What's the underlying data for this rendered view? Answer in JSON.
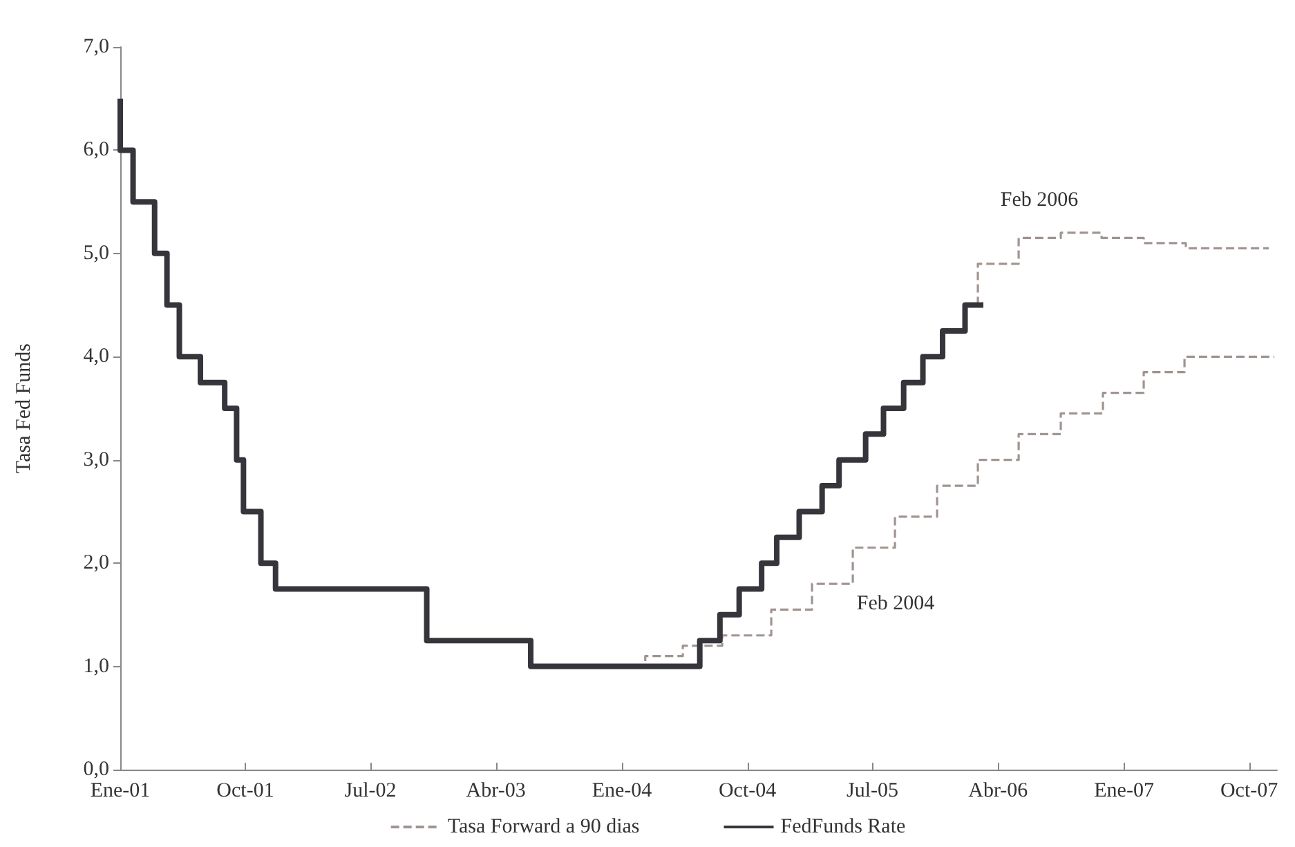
{
  "chart_data": {
    "type": "step",
    "ylabel": "Tasa Fed Funds",
    "xlim": [
      "2001-01-01",
      "2007-12-01"
    ],
    "xticks": [
      {
        "value": "2001-01-01",
        "label": "Ene-01"
      },
      {
        "value": "2001-10-01",
        "label": "Oct-01"
      },
      {
        "value": "2002-07-01",
        "label": "Jul-02"
      },
      {
        "value": "2003-04-01",
        "label": "Abr-03"
      },
      {
        "value": "2004-01-01",
        "label": "Ene-04"
      },
      {
        "value": "2004-10-01",
        "label": "Oct-04"
      },
      {
        "value": "2005-07-01",
        "label": "Jul-05"
      },
      {
        "value": "2006-04-01",
        "label": "Abr-06"
      },
      {
        "value": "2007-01-01",
        "label": "Ene-07"
      },
      {
        "value": "2007-10-01",
        "label": "Oct-07"
      }
    ],
    "ylim": [
      0,
      7
    ],
    "yticks": [
      {
        "value": 0,
        "label": "0,0"
      },
      {
        "value": 1,
        "label": "1,0"
      },
      {
        "value": 2,
        "label": "2,0"
      },
      {
        "value": 3,
        "label": "3,0"
      },
      {
        "value": 4,
        "label": "4,0"
      },
      {
        "value": 5,
        "label": "5,0"
      },
      {
        "value": 6,
        "label": "6,0"
      },
      {
        "value": 7,
        "label": "7,0"
      }
    ],
    "grid": false,
    "legend": "bottom",
    "annotations": [
      "Feb 2006",
      "Feb 2004"
    ],
    "series": [
      {
        "name": "Tasa Forward a 90 dias",
        "color": "#a09490",
        "line_style": "dashed",
        "x": [
          "2004-02-21",
          "2004-05-13",
          "2004-08-07",
          "2004-11-22",
          "2005-02-19",
          "2005-05-19",
          "2005-08-19",
          "2005-11-19",
          "2006-02-16",
          "2006-05-16",
          "2006-08-16",
          "2006-11-16",
          "2007-02-13",
          "2007-05-13",
          "2007-11-25"
        ],
        "values": [
          1.05,
          1.1,
          1.2,
          1.3,
          1.55,
          1.8,
          2.15,
          2.45,
          2.75,
          3.0,
          3.25,
          3.45,
          3.65,
          3.85,
          4.0
        ]
      },
      {
        "color": "#a09490",
        "line_style": "dashed",
        "x": [
          "2006-02-16",
          "2006-05-16",
          "2006-08-16",
          "2006-11-13",
          "2007-02-13",
          "2007-05-16",
          "2007-11-13"
        ],
        "values": [
          4.5,
          4.9,
          5.15,
          5.2,
          5.15,
          5.1,
          5.05
        ]
      },
      {
        "name": "FedFunds Rate",
        "color": "#35353b",
        "line_style": "solid",
        "x": [
          "2001-01-01",
          "2001-01-29",
          "2001-03-17",
          "2001-04-13",
          "2001-05-10",
          "2001-06-25",
          "2001-08-17",
          "2001-09-12",
          "2001-09-27",
          "2001-11-04",
          "2001-12-06",
          "2002-11-01",
          "2003-06-16",
          "2004-06-19",
          "2004-08-02",
          "2004-09-13",
          "2004-11-01",
          "2004-12-04",
          "2005-01-22",
          "2005-03-13",
          "2005-04-19",
          "2005-06-16",
          "2005-07-25",
          "2005-09-07",
          "2005-10-19",
          "2005-12-01",
          "2006-01-19",
          "2006-02-28"
        ],
        "values": [
          6.5,
          6.0,
          5.5,
          5.0,
          4.5,
          4.0,
          3.75,
          3.5,
          3.0,
          2.5,
          2.0,
          1.75,
          1.25,
          1.0,
          1.25,
          1.5,
          1.75,
          2.0,
          2.25,
          2.5,
          2.75,
          3.0,
          3.25,
          3.5,
          3.75,
          4.0,
          4.25,
          4.5
        ]
      }
    ]
  }
}
